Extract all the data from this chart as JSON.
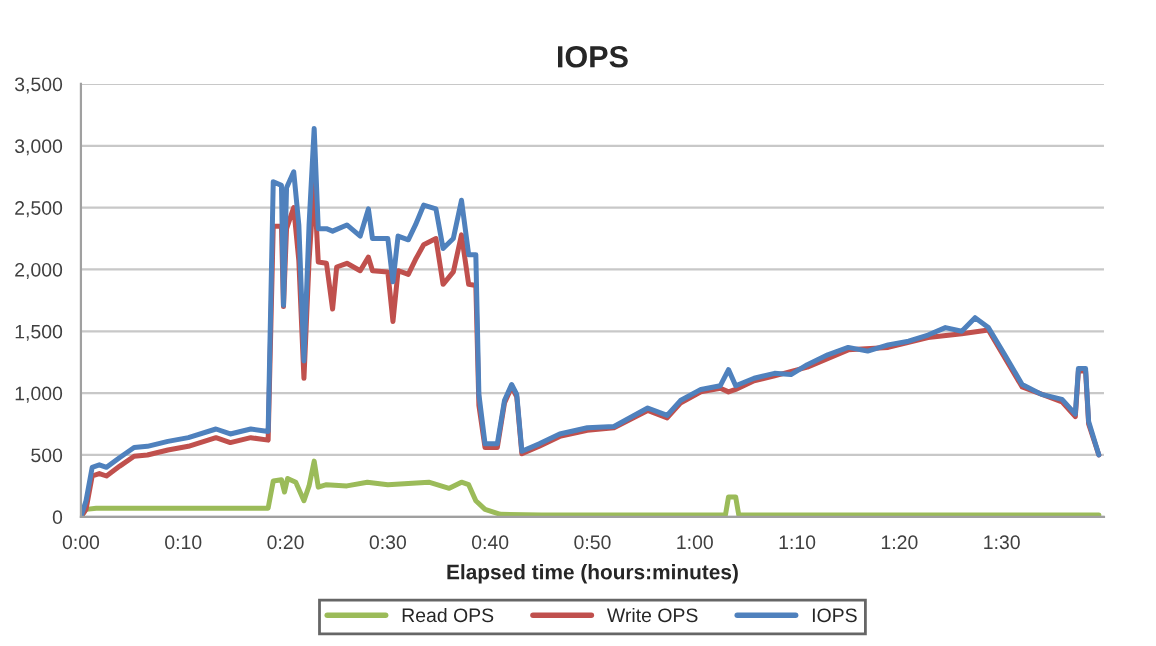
{
  "chart_data": {
    "type": "line",
    "title": "IOPS",
    "xlabel": "Elapsed time (hours:minutes)",
    "xlim": [
      0,
      100
    ],
    "xticks": [
      {
        "value": 0,
        "label": "0:00"
      },
      {
        "value": 10,
        "label": "0:10"
      },
      {
        "value": 20,
        "label": "0:20"
      },
      {
        "value": 30,
        "label": "0:30"
      },
      {
        "value": 40,
        "label": "0:40"
      },
      {
        "value": 50,
        "label": "0:50"
      },
      {
        "value": 60,
        "label": "1:00"
      },
      {
        "value": 70,
        "label": "1:10"
      },
      {
        "value": 80,
        "label": "1:20"
      },
      {
        "value": 90,
        "label": "1:30"
      }
    ],
    "ylim": [
      0,
      3500
    ],
    "yticks": [
      0,
      {
        "value": 500,
        "label": "500"
      },
      {
        "value": 1000,
        "label": "1,000"
      },
      {
        "value": 1500,
        "label": "1,500"
      },
      {
        "value": 2000,
        "label": "2,000"
      },
      {
        "value": 2500,
        "label": "2,500"
      },
      {
        "value": 3000,
        "label": "3,000"
      },
      {
        "value": 3500,
        "label": "3,500"
      }
    ],
    "grid": "y",
    "legend": "bottom",
    "marker": "none",
    "line_style": "solid",
    "series": [
      {
        "name": "Read OPS",
        "color": "#9bbb59",
        "x": [
          0,
          0.5,
          1.5,
          10,
          18.3,
          18.8,
          19.6,
          19.9,
          20.2,
          21,
          21.8,
          22.3,
          22.8,
          23.2,
          24,
          26,
          28,
          30,
          32,
          34,
          36,
          37.2,
          37.9,
          38.6,
          39.5,
          41,
          45,
          63,
          63.3,
          64,
          64.3,
          80,
          99.5
        ],
        "values": [
          0,
          60,
          70,
          70,
          70,
          290,
          300,
          200,
          310,
          280,
          130,
          250,
          450,
          240,
          260,
          250,
          280,
          260,
          270,
          280,
          230,
          280,
          260,
          130,
          60,
          20,
          15,
          15,
          160,
          160,
          15,
          15,
          15
        ]
      },
      {
        "name": "Write OPS",
        "color": "#c0504d",
        "x": [
          0,
          0.5,
          1.1,
          1.8,
          2.5,
          3.8,
          5.2,
          6.5,
          8.5,
          10.5,
          13.2,
          14.6,
          16.6,
          18.3,
          18.8,
          19.6,
          19.8,
          20.1,
          20.8,
          21.3,
          21.8,
          22.3,
          22.8,
          23.2,
          24.0,
          24.6,
          25.0,
          26.0,
          27.3,
          28.1,
          28.5,
          30.0,
          30.5,
          31.0,
          32.0,
          32.7,
          33.5,
          34.7,
          35.4,
          36.4,
          37.2,
          37.9,
          38.6,
          38.9,
          39.5,
          40.7,
          41.4,
          42.1,
          42.6,
          43.1,
          44.8,
          46.8,
          49.5,
          52.1,
          55.4,
          57.3,
          58.6,
          60.6,
          62.5,
          63.3,
          64.0,
          65.8,
          67.8,
          71.0,
          75.0,
          78.9,
          82.8,
          86.1,
          88.7,
          92.0,
          95.9,
          97.2,
          97.5,
          98.2,
          98.5,
          99.5
        ],
        "values": [
          0,
          60,
          330,
          350,
          330,
          410,
          490,
          500,
          540,
          570,
          640,
          600,
          640,
          620,
          2350,
          2350,
          1700,
          2330,
          2500,
          2070,
          1120,
          2070,
          2700,
          2060,
          2050,
          1680,
          2020,
          2050,
          1990,
          2100,
          1990,
          1980,
          1580,
          1990,
          1960,
          2080,
          2200,
          2250,
          1880,
          1980,
          2280,
          1880,
          1870,
          900,
          560,
          560,
          920,
          1050,
          970,
          510,
          570,
          650,
          700,
          720,
          860,
          800,
          920,
          1010,
          1040,
          1010,
          1030,
          1100,
          1140,
          1210,
          1350,
          1370,
          1450,
          1480,
          1510,
          1050,
          930,
          810,
          1180,
          1180,
          750,
          500
        ]
      },
      {
        "name": "IOPS",
        "color": "#4f81bd",
        "x": [
          0,
          0.5,
          1.1,
          1.8,
          2.5,
          3.8,
          5.2,
          6.5,
          8.5,
          10.5,
          13.2,
          14.6,
          16.6,
          18.3,
          18.8,
          19.6,
          19.8,
          20.1,
          20.8,
          21.3,
          21.8,
          22.3,
          22.8,
          23.2,
          24.0,
          24.6,
          26.0,
          27.3,
          28.1,
          28.5,
          30.0,
          30.5,
          31.0,
          32.0,
          32.7,
          33.5,
          34.7,
          35.4,
          36.4,
          37.2,
          37.9,
          38.6,
          38.9,
          39.5,
          40.7,
          41.4,
          42.1,
          42.6,
          43.1,
          44.8,
          46.8,
          49.5,
          52.1,
          55.4,
          57.3,
          58.6,
          60.6,
          62.5,
          63.3,
          64.0,
          65.8,
          67.8,
          69.4,
          71.0,
          73.0,
          75.0,
          76.9,
          78.9,
          80.9,
          82.8,
          84.5,
          86.1,
          87.4,
          88.7,
          90.3,
          92.0,
          93.9,
          95.9,
          97.2,
          97.5,
          98.2,
          98.5,
          99.5
        ],
        "values": [
          0,
          130,
          400,
          420,
          400,
          480,
          560,
          570,
          610,
          640,
          710,
          670,
          710,
          690,
          2710,
          2680,
          1710,
          2660,
          2790,
          2360,
          1260,
          2360,
          3140,
          2330,
          2330,
          2310,
          2360,
          2270,
          2490,
          2250,
          2250,
          1900,
          2270,
          2240,
          2360,
          2520,
          2490,
          2170,
          2250,
          2560,
          2120,
          2120,
          990,
          590,
          590,
          940,
          1070,
          990,
          530,
          590,
          670,
          720,
          730,
          880,
          820,
          940,
          1030,
          1060,
          1190,
          1060,
          1120,
          1160,
          1150,
          1230,
          1310,
          1370,
          1340,
          1390,
          1420,
          1470,
          1530,
          1500,
          1610,
          1530,
          1310,
          1070,
          990,
          950,
          830,
          1200,
          1200,
          770,
          500
        ]
      }
    ]
  }
}
